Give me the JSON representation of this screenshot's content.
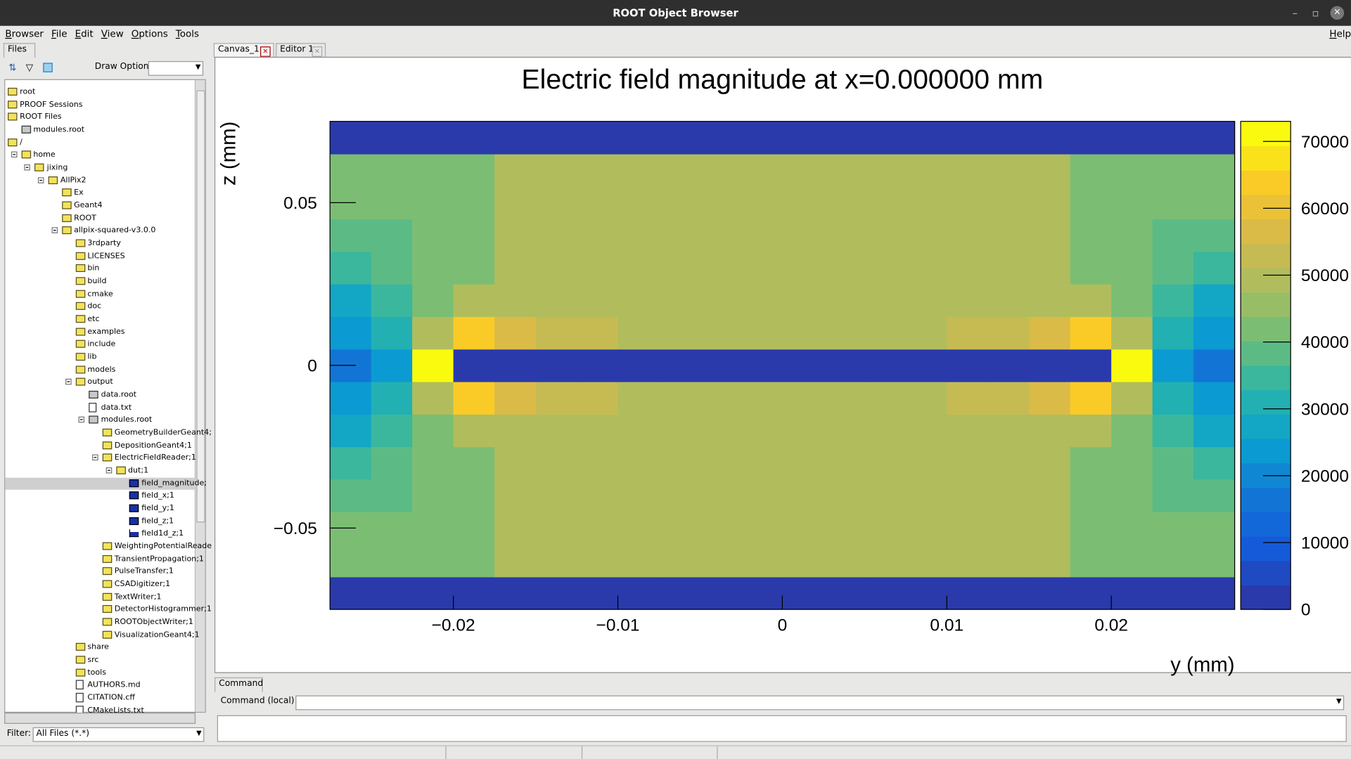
{
  "window_title": "ROOT Object Browser",
  "menu": [
    "Browser",
    "File",
    "Edit",
    "View",
    "Options",
    "Tools"
  ],
  "help": "Help",
  "left_tab": "Files",
  "draw_option_label": "Draw Option:",
  "tree": [
    {
      "label": "root",
      "icon": "folder"
    },
    {
      "label": "PROOF Sessions",
      "icon": "folder"
    },
    {
      "label": "ROOT Files",
      "icon": "folder",
      "children": [
        {
          "label": "modules.root",
          "icon": "rootfile"
        }
      ]
    },
    {
      "label": "/",
      "icon": "folder",
      "children": [
        {
          "label": "home",
          "icon": "folder",
          "children": [
            {
              "label": "jixing",
              "icon": "folder",
              "children": [
                {
                  "label": "AllPix2",
                  "icon": "folder",
                  "children": [
                    {
                      "label": "Ex",
                      "icon": "folder"
                    },
                    {
                      "label": "Geant4",
                      "icon": "folder"
                    },
                    {
                      "label": "ROOT",
                      "icon": "folder"
                    },
                    {
                      "label": "allpix-squared-v3.0.0",
                      "icon": "folder",
                      "children": [
                        {
                          "label": "3rdparty",
                          "icon": "folder"
                        },
                        {
                          "label": "LICENSES",
                          "icon": "folder"
                        },
                        {
                          "label": "bin",
                          "icon": "folder"
                        },
                        {
                          "label": "build",
                          "icon": "folder"
                        },
                        {
                          "label": "cmake",
                          "icon": "folder"
                        },
                        {
                          "label": "doc",
                          "icon": "folder"
                        },
                        {
                          "label": "etc",
                          "icon": "folder"
                        },
                        {
                          "label": "examples",
                          "icon": "folder"
                        },
                        {
                          "label": "include",
                          "icon": "folder"
                        },
                        {
                          "label": "lib",
                          "icon": "folder"
                        },
                        {
                          "label": "models",
                          "icon": "folder"
                        },
                        {
                          "label": "output",
                          "icon": "folder",
                          "children": [
                            {
                              "label": "data.root",
                              "icon": "rootfile"
                            },
                            {
                              "label": "data.txt",
                              "icon": "file"
                            },
                            {
                              "label": "modules.root",
                              "icon": "rootfile",
                              "children": [
                                {
                                  "label": "GeometryBuilderGeant4;",
                                  "icon": "folder"
                                },
                                {
                                  "label": "DepositionGeant4;1",
                                  "icon": "folder"
                                },
                                {
                                  "label": "ElectricFieldReader;1",
                                  "icon": "folder",
                                  "children": [
                                    {
                                      "label": "dut;1",
                                      "icon": "folder",
                                      "children": [
                                        {
                                          "label": "field_magnitude;",
                                          "icon": "h2",
                                          "selected": true
                                        },
                                        {
                                          "label": "field_x;1",
                                          "icon": "h2"
                                        },
                                        {
                                          "label": "field_y;1",
                                          "icon": "h2"
                                        },
                                        {
                                          "label": "field_z;1",
                                          "icon": "h2"
                                        },
                                        {
                                          "label": "field1d_z;1",
                                          "icon": "h1"
                                        }
                                      ]
                                    }
                                  ]
                                },
                                {
                                  "label": "WeightingPotentialReade",
                                  "icon": "folder"
                                },
                                {
                                  "label": "TransientPropagation;1",
                                  "icon": "folder"
                                },
                                {
                                  "label": "PulseTransfer;1",
                                  "icon": "folder"
                                },
                                {
                                  "label": "CSADigitizer;1",
                                  "icon": "folder"
                                },
                                {
                                  "label": "TextWriter;1",
                                  "icon": "folder"
                                },
                                {
                                  "label": "DetectorHistogrammer;1",
                                  "icon": "folder"
                                },
                                {
                                  "label": "ROOTObjectWriter;1",
                                  "icon": "folder"
                                },
                                {
                                  "label": "VisualizationGeant4;1",
                                  "icon": "folder"
                                }
                              ]
                            }
                          ]
                        },
                        {
                          "label": "share",
                          "icon": "folder"
                        },
                        {
                          "label": "src",
                          "icon": "folder"
                        },
                        {
                          "label": "tools",
                          "icon": "folder"
                        },
                        {
                          "label": "AUTHORS.md",
                          "icon": "file"
                        },
                        {
                          "label": "CITATION.cff",
                          "icon": "file"
                        },
                        {
                          "label": "CMakeLists.txt",
                          "icon": "file"
                        }
                      ]
                    }
                  ]
                }
              ]
            }
          ]
        }
      ]
    }
  ],
  "filter_label": "Filter:",
  "filter_value": "All Files (*.*)",
  "canvas_tabs": [
    "Canvas_1",
    "Editor 1"
  ],
  "command_tab": "Command",
  "command_label": "Command (local):",
  "chart_data": {
    "type": "heatmap",
    "title": "Electric field magnitude at x=0.000000 mm",
    "x_label": "y (mm)",
    "y_label": "z (mm)",
    "xlim": [
      -0.0275,
      0.0275
    ],
    "ylim": [
      -0.075,
      0.075
    ],
    "zlim": [
      0,
      73000
    ],
    "xticks": [
      {
        "value": -0.02,
        "label": "−0.02"
      },
      {
        "value": -0.01,
        "label": "−0.01"
      },
      0,
      0.01,
      0.02
    ],
    "yticks": [
      {
        "value": -0.05,
        "label": "−0.05"
      },
      0,
      0.05
    ],
    "zticks": [
      0,
      10000,
      20000,
      30000,
      40000,
      50000,
      60000,
      70000
    ],
    "palette": "bird",
    "levels": 20,
    "xbins": [
      -0.0275,
      -0.025,
      -0.0225,
      -0.02,
      -0.0175,
      -0.015,
      -0.0125,
      -0.01,
      -0.0075,
      -0.005,
      -0.0025,
      0,
      0.0025,
      0.005,
      0.0075,
      0.01,
      0.0125,
      0.015,
      0.0175,
      0.02,
      0.0225,
      0.025,
      0.0275
    ],
    "ybins": [
      -0.075,
      -0.065,
      -0.055,
      -0.045,
      -0.035,
      -0.025,
      -0.015,
      -0.005,
      0.005,
      0.015,
      0.025,
      0.035,
      0.045,
      0.055,
      0.065,
      0.075
    ],
    "z": [
      [
        0,
        0,
        0,
        0,
        0,
        0,
        0,
        0,
        0,
        0,
        0,
        0,
        0,
        0,
        0,
        0,
        0,
        0,
        0,
        0,
        0,
        0
      ],
      [
        42000,
        42000,
        42000,
        42000,
        48000,
        48000,
        48000,
        48000,
        48000,
        48000,
        48000,
        48000,
        48000,
        48000,
        48000,
        48000,
        48000,
        48000,
        42000,
        42000,
        42000,
        42000
      ],
      [
        42000,
        42000,
        42000,
        42000,
        48000,
        48000,
        48000,
        48000,
        48000,
        48000,
        48000,
        48000,
        48000,
        48000,
        48000,
        48000,
        48000,
        48000,
        42000,
        42000,
        42000,
        42000
      ],
      [
        38000,
        40000,
        42000,
        42000,
        48000,
        48000,
        48000,
        48000,
        48000,
        48000,
        48000,
        48000,
        48000,
        48000,
        48000,
        48000,
        48000,
        48000,
        42000,
        42000,
        40000,
        38000
      ],
      [
        33000,
        37000,
        41000,
        43000,
        48000,
        48000,
        48000,
        48000,
        48000,
        48000,
        48000,
        48000,
        48000,
        48000,
        48000,
        48000,
        48000,
        48000,
        43000,
        41000,
        37000,
        33000
      ],
      [
        28000,
        34000,
        42000,
        48000,
        51000,
        51000,
        50000,
        50000,
        49000,
        48000,
        48000,
        48000,
        48000,
        49000,
        50000,
        50000,
        51000,
        51000,
        48000,
        42000,
        34000,
        28000
      ],
      [
        22000,
        30000,
        50000,
        65000,
        58000,
        54000,
        52000,
        51000,
        50000,
        49000,
        49000,
        49000,
        49000,
        50000,
        51000,
        52000,
        54000,
        58000,
        65000,
        50000,
        30000,
        22000
      ],
      [
        15000,
        24000,
        70000,
        0,
        0,
        0,
        0,
        0,
        0,
        0,
        0,
        0,
        0,
        0,
        0,
        0,
        0,
        0,
        0,
        70000,
        24000,
        15000
      ],
      [
        22000,
        30000,
        50000,
        65000,
        58000,
        54000,
        52000,
        51000,
        50000,
        49000,
        49000,
        49000,
        49000,
        50000,
        51000,
        52000,
        54000,
        58000,
        65000,
        50000,
        30000,
        22000
      ],
      [
        28000,
        34000,
        42000,
        48000,
        51000,
        51000,
        50000,
        50000,
        49000,
        48000,
        48000,
        48000,
        48000,
        49000,
        50000,
        50000,
        51000,
        51000,
        48000,
        42000,
        34000,
        28000
      ],
      [
        33000,
        37000,
        41000,
        43000,
        48000,
        48000,
        48000,
        48000,
        48000,
        48000,
        48000,
        48000,
        48000,
        48000,
        48000,
        48000,
        48000,
        48000,
        43000,
        41000,
        37000,
        33000
      ],
      [
        38000,
        40000,
        42000,
        42000,
        48000,
        48000,
        48000,
        48000,
        48000,
        48000,
        48000,
        48000,
        48000,
        48000,
        48000,
        48000,
        48000,
        48000,
        42000,
        42000,
        40000,
        38000
      ],
      [
        42000,
        42000,
        42000,
        42000,
        48000,
        48000,
        48000,
        48000,
        48000,
        48000,
        48000,
        48000,
        48000,
        48000,
        48000,
        48000,
        48000,
        48000,
        42000,
        42000,
        42000,
        42000
      ],
      [
        42000,
        42000,
        42000,
        42000,
        48000,
        48000,
        48000,
        48000,
        48000,
        48000,
        48000,
        48000,
        48000,
        48000,
        48000,
        48000,
        48000,
        48000,
        42000,
        42000,
        42000,
        42000
      ],
      [
        0,
        0,
        0,
        0,
        0,
        0,
        0,
        0,
        0,
        0,
        0,
        0,
        0,
        0,
        0,
        0,
        0,
        0,
        0,
        0,
        0,
        0
      ]
    ]
  }
}
